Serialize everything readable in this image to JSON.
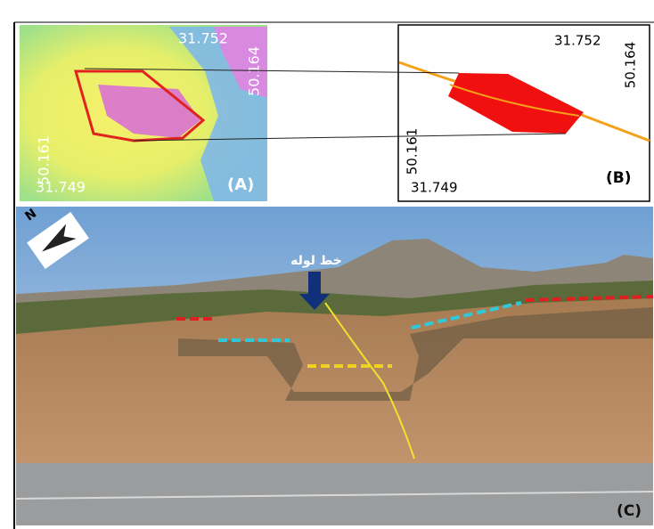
{
  "panels": {
    "a": {
      "label": "(A)",
      "coords": {
        "top": "31.752",
        "right": "50.164",
        "left": "50.161",
        "bottom": "31.749"
      }
    },
    "b": {
      "label": "(B)",
      "coords": {
        "top": "31.752",
        "right": "50.164",
        "left": "50.161",
        "bottom": "31.749"
      }
    },
    "c": {
      "label": "(C)",
      "north": "N",
      "annotation": "خط لوله"
    }
  }
}
